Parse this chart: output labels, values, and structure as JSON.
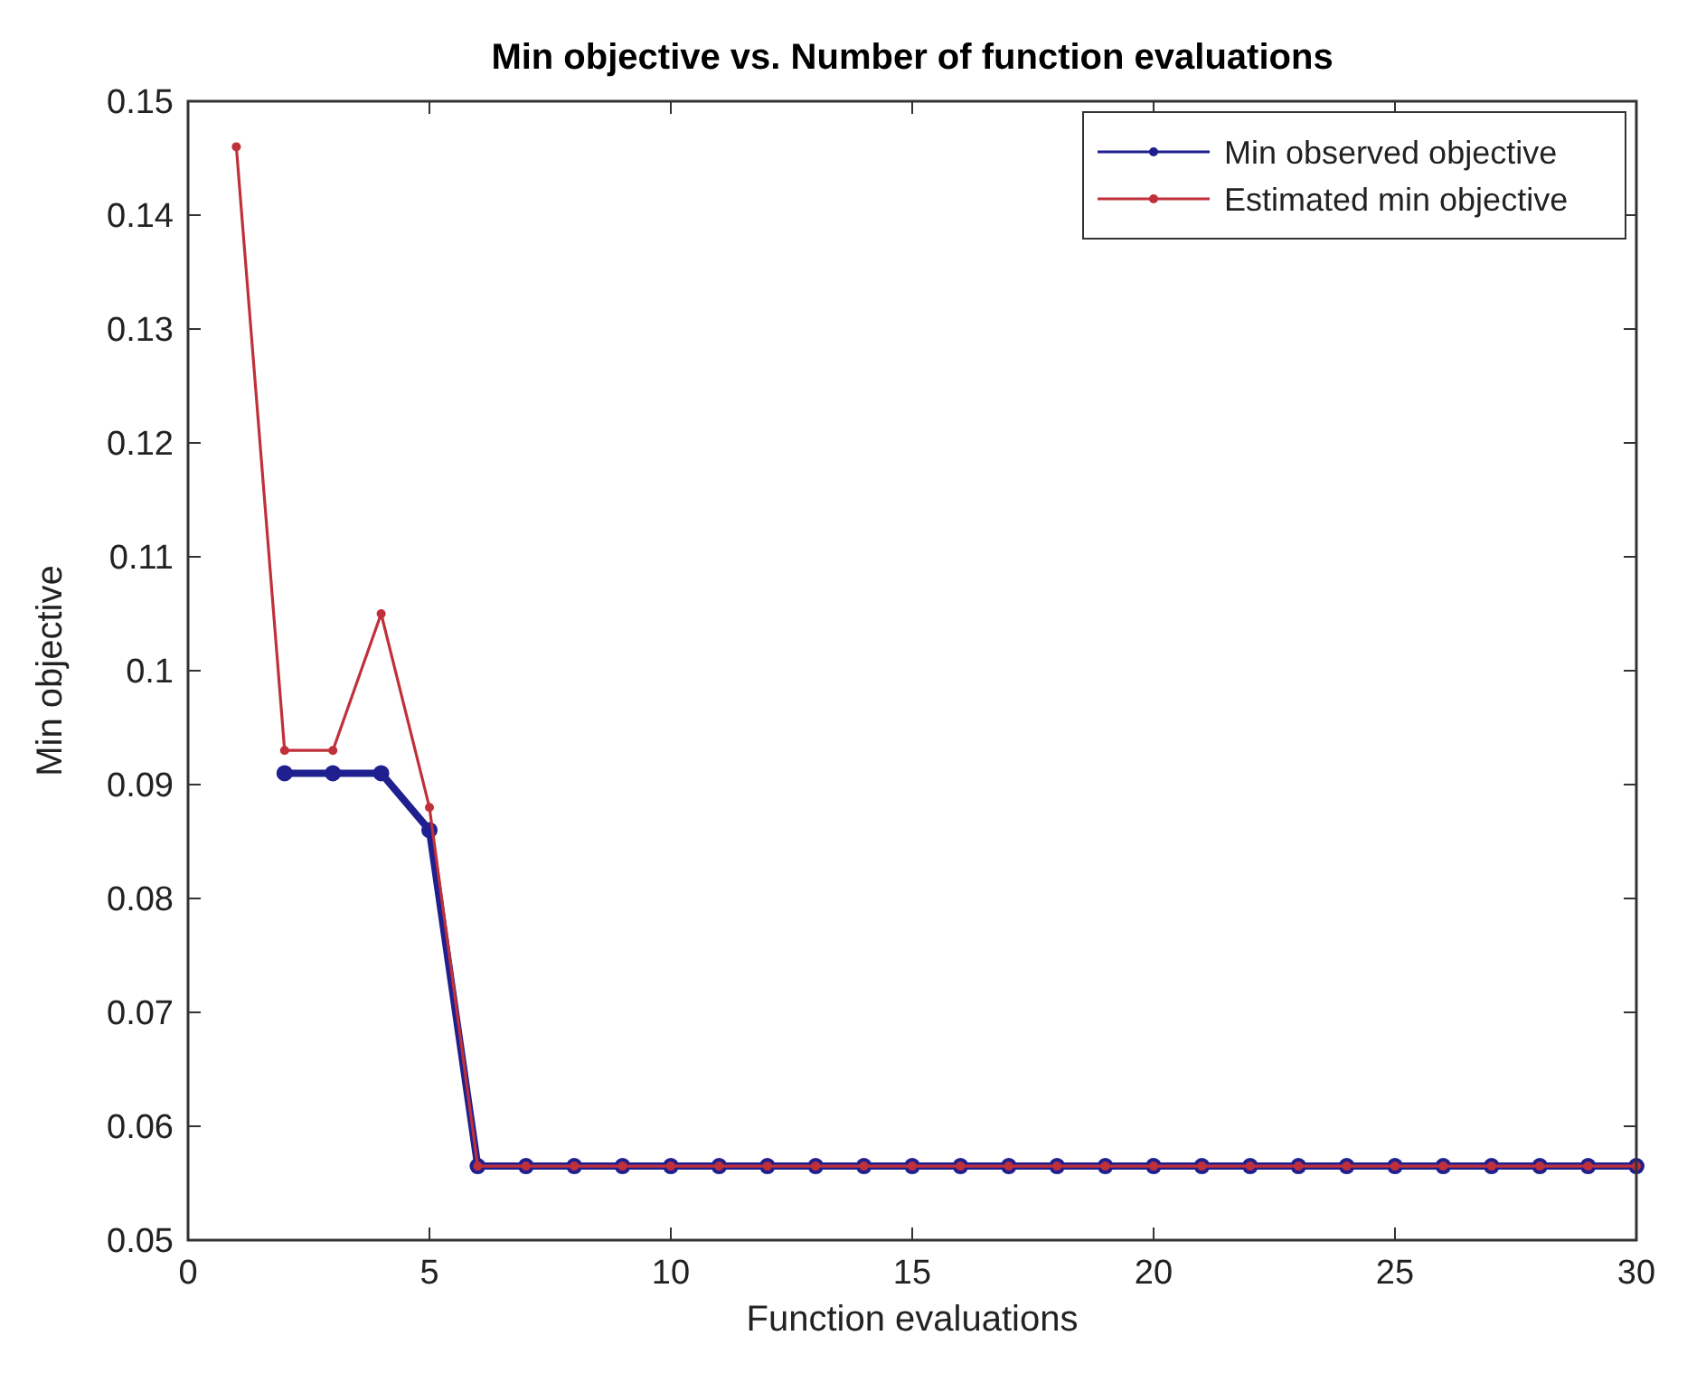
{
  "chart_data": {
    "type": "line",
    "title": "Min objective vs. Number of function evaluations",
    "xlabel": "Function evaluations",
    "ylabel": "Min objective",
    "x": [
      1,
      2,
      3,
      4,
      5,
      6,
      7,
      8,
      9,
      10,
      11,
      12,
      13,
      14,
      15,
      16,
      17,
      18,
      19,
      20,
      21,
      22,
      23,
      24,
      25,
      26,
      27,
      28,
      29,
      30
    ],
    "series": [
      {
        "name": "Min observed objective",
        "color": "#1f1f8f",
        "x": [
          2,
          3,
          4,
          5,
          6,
          7,
          8,
          9,
          10,
          11,
          12,
          13,
          14,
          15,
          16,
          17,
          18,
          19,
          20,
          21,
          22,
          23,
          24,
          25,
          26,
          27,
          28,
          29,
          30
        ],
        "values": [
          0.091,
          0.091,
          0.091,
          0.086,
          0.0565,
          0.0565,
          0.0565,
          0.0565,
          0.0565,
          0.0565,
          0.0565,
          0.0565,
          0.0565,
          0.0565,
          0.0565,
          0.0565,
          0.0565,
          0.0565,
          0.0565,
          0.0565,
          0.0565,
          0.0565,
          0.0565,
          0.0565,
          0.0565,
          0.0565,
          0.0565,
          0.0565,
          0.0565
        ]
      },
      {
        "name": "Estimated min objective",
        "color": "#c0303a",
        "values": [
          0.146,
          0.093,
          0.093,
          0.105,
          0.088,
          0.0565,
          0.0565,
          0.0565,
          0.0565,
          0.0565,
          0.0565,
          0.0565,
          0.0565,
          0.0565,
          0.0565,
          0.0565,
          0.0565,
          0.0565,
          0.0565,
          0.0565,
          0.0565,
          0.0565,
          0.0565,
          0.0565,
          0.0565,
          0.0565,
          0.0565,
          0.0565,
          0.0565,
          0.0565
        ]
      }
    ],
    "xlim": [
      0,
      30
    ],
    "xticks": [
      0,
      5,
      10,
      15,
      20,
      25,
      30
    ],
    "ylim": [
      0.05,
      0.15
    ],
    "yticks": [
      0.05,
      0.06,
      0.07,
      0.08,
      0.09,
      0.1,
      0.11,
      0.12,
      0.13,
      0.14,
      0.15
    ],
    "legend": "top right",
    "marker": "circle",
    "line_style": "solid",
    "grid": false
  }
}
